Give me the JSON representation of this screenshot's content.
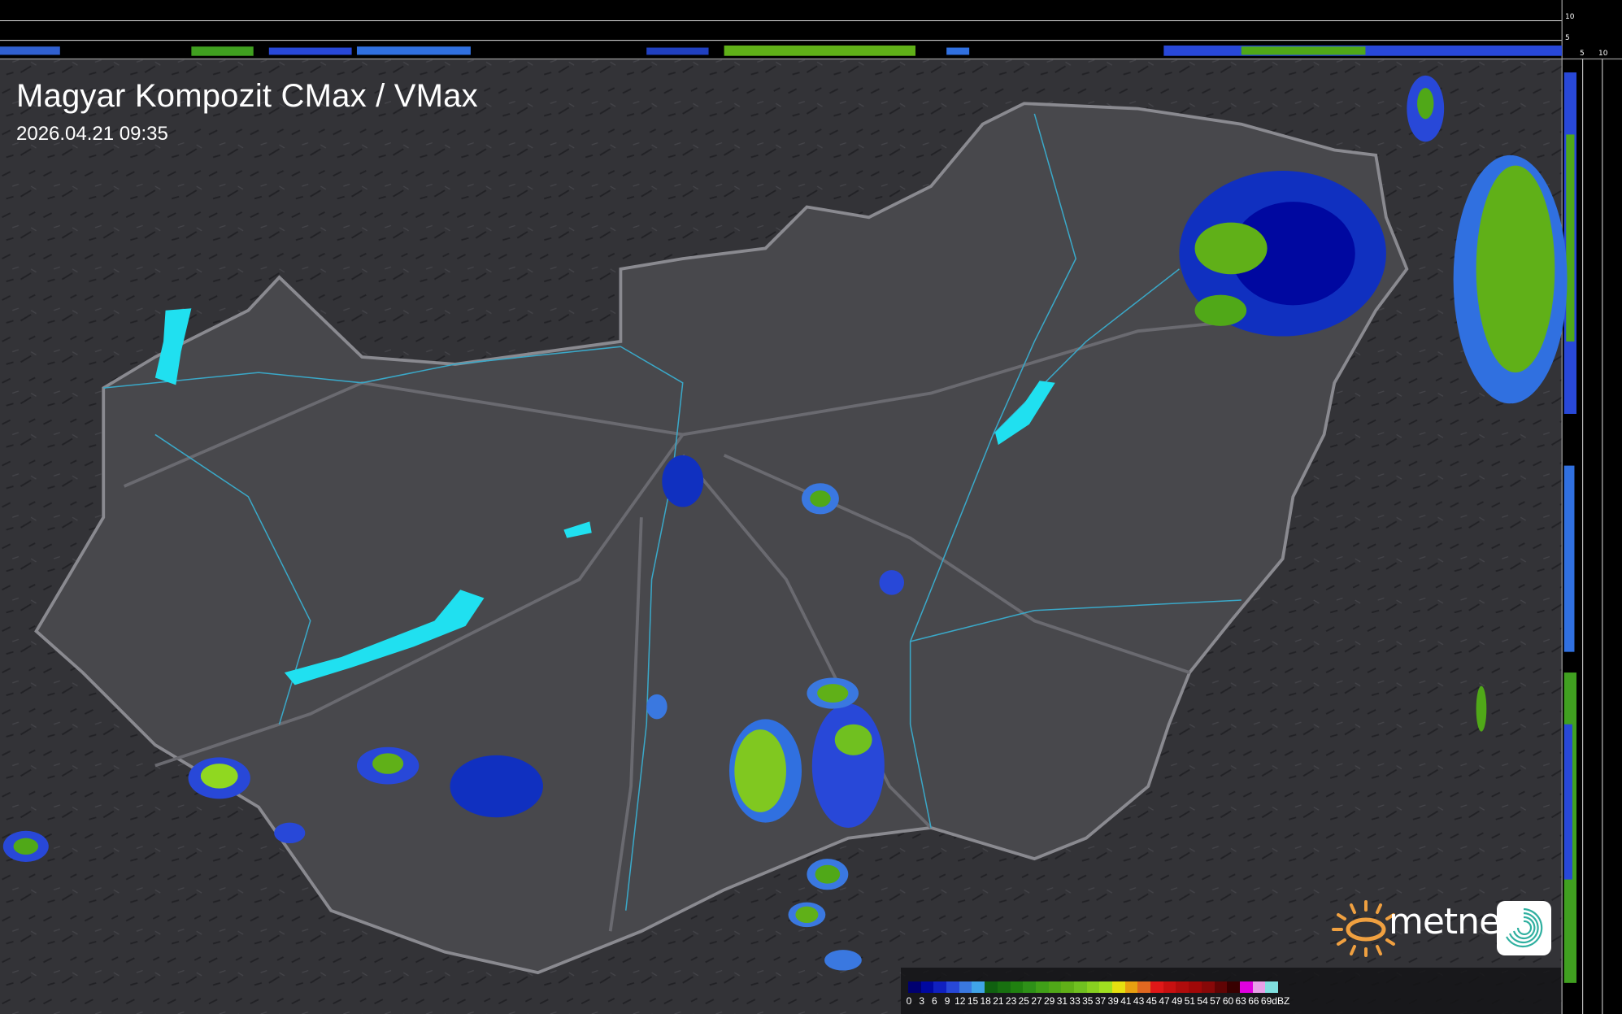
{
  "header": {
    "title": "Magyar Kompozit CMax / VMax",
    "timestamp": "2026.04.21 09:35"
  },
  "profile_scales": {
    "top_labels": [
      "10",
      "5"
    ],
    "right_labels": [
      "5",
      "10"
    ]
  },
  "legend": {
    "unit": "dBZ",
    "ticks": [
      "0",
      "3",
      "6",
      "9",
      "12",
      "15",
      "18",
      "21",
      "23",
      "25",
      "27",
      "29",
      "31",
      "33",
      "35",
      "37",
      "39",
      "41",
      "43",
      "45",
      "47",
      "49",
      "51",
      "54",
      "57",
      "60",
      "63",
      "66",
      "69"
    ],
    "colors": [
      "#000070",
      "#0008a0",
      "#1020c0",
      "#2848d8",
      "#3a78e0",
      "#40a4e8",
      "#106010",
      "#187010",
      "#208010",
      "#2e9018",
      "#40a018",
      "#50a818",
      "#60b018",
      "#70c020",
      "#88d020",
      "#a0e020",
      "#e6e010",
      "#e8a010",
      "#e06820",
      "#e01818",
      "#c81010",
      "#b00c0c",
      "#a00808",
      "#880808",
      "#600404",
      "#380000",
      "#e000e0",
      "#e8a0e8",
      "#80e0e0"
    ]
  },
  "branding": {
    "logo_text": "metnet",
    "accent_color": "#f0a040",
    "app_icon_color": "#30b0a0"
  },
  "map": {
    "land_color": "#3a3a3e",
    "country_fill": "#4a4a4e",
    "lake_color": "#20e0f0",
    "river_color": "#3aa8c8"
  }
}
